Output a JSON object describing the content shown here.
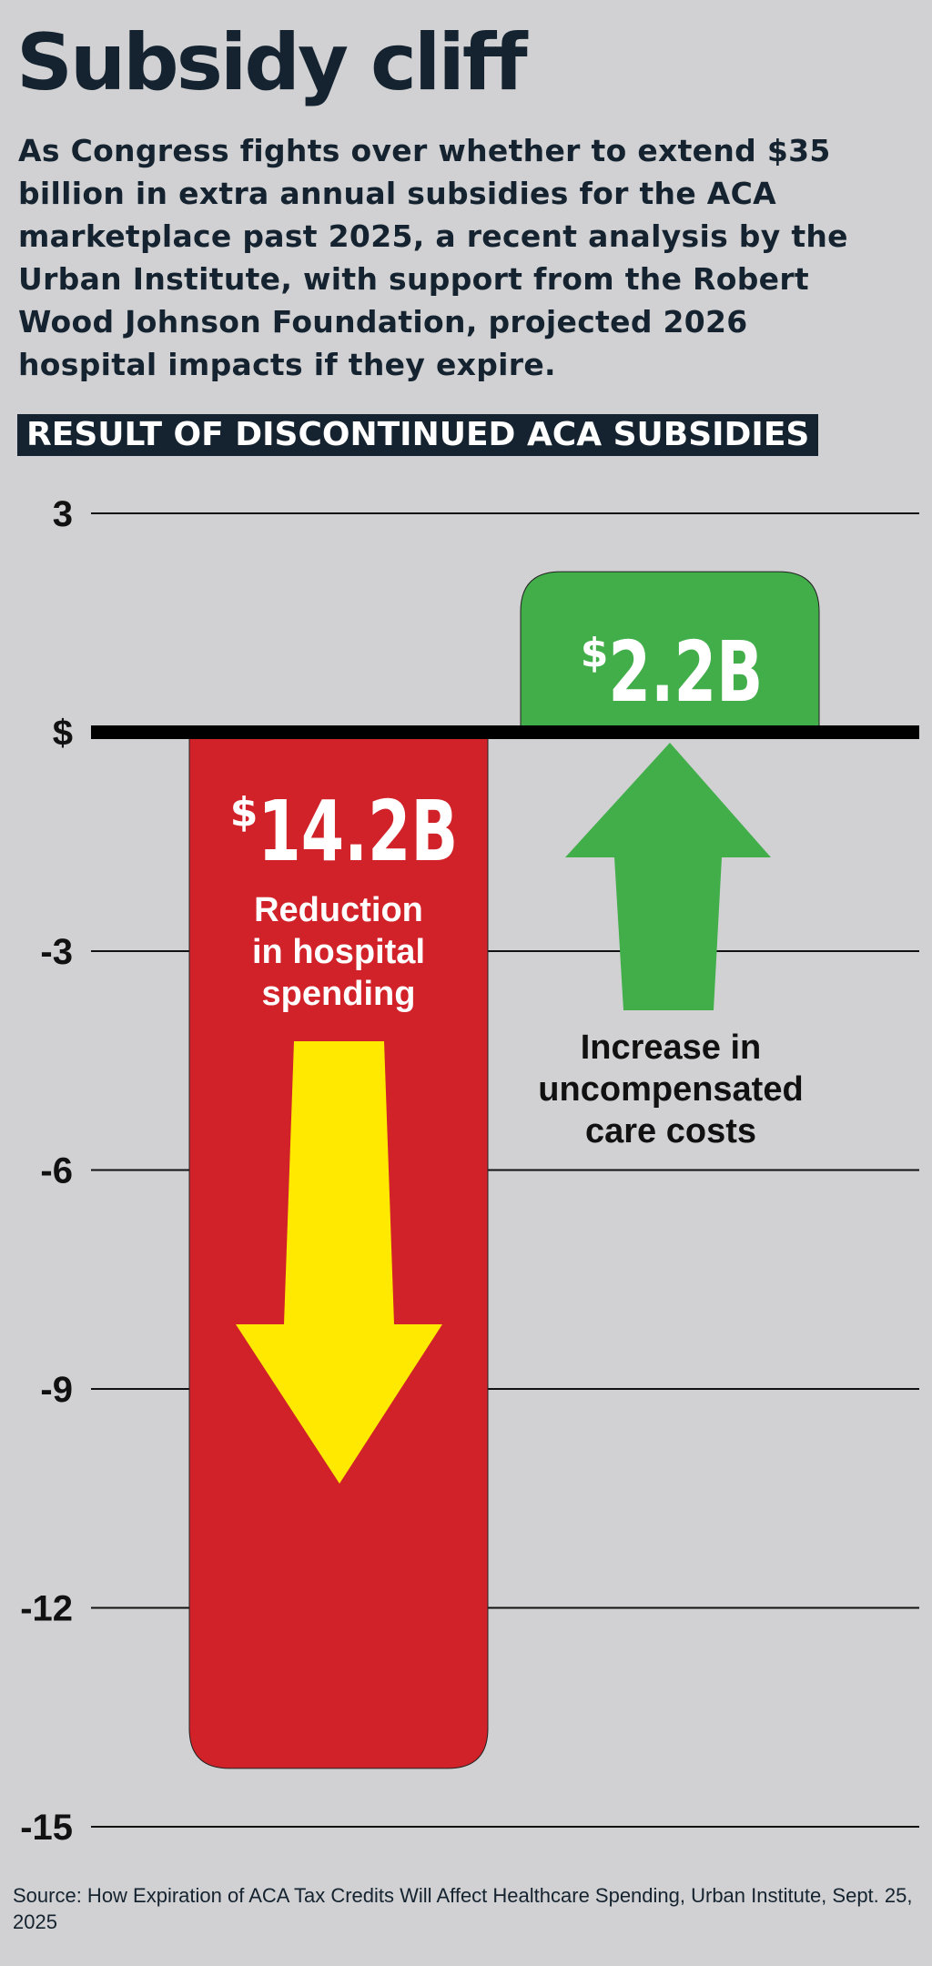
{
  "title": "Subsidy cliff",
  "intro": "As Congress fights over whether to extend $35 billion in extra annual subsidies for the ACA marketplace past 2025, a recent analysis by the Urban Institute, with support from the Robert Wood Johnson Foundation, projected 2026 hospital impacts if they expire.",
  "banner": "RESULT OF DISCONTINUED ACA SUBSIDIES",
  "source": "Source: How Expiration of ACA Tax Credits Will Affect Healthcare Spending, Urban Institute, Sept. 25, 2025",
  "colors": {
    "background": "#d1d1d3",
    "text": "#14232f",
    "red_bar": "#d12229",
    "green_bar": "#41ae4a",
    "yellow_arrow": "#ffe900"
  },
  "chart_data": {
    "type": "bar",
    "ylim": [
      -15,
      3
    ],
    "yticks": [
      3,
      0,
      -3,
      -6,
      -9,
      -12,
      -15
    ],
    "ytick_labels": [
      "3",
      "$",
      "-3",
      "-6",
      "-9",
      "-12",
      "-15"
    ],
    "grid": true,
    "bars": [
      {
        "id": "hospital-spending",
        "value": -14.2,
        "value_label": "14.2B",
        "currency": "$",
        "label": "Reduction in hospital spending",
        "label_lines": [
          "Reduction",
          "in hospital",
          "spending"
        ],
        "arrow": "down"
      },
      {
        "id": "uncompensated-care",
        "value": 2.2,
        "value_label": "2.2B",
        "currency": "$",
        "label": "Increase in uncompensated care costs",
        "label_lines": [
          "Increase in",
          "uncompensated",
          "care costs"
        ],
        "arrow": "up"
      }
    ]
  }
}
